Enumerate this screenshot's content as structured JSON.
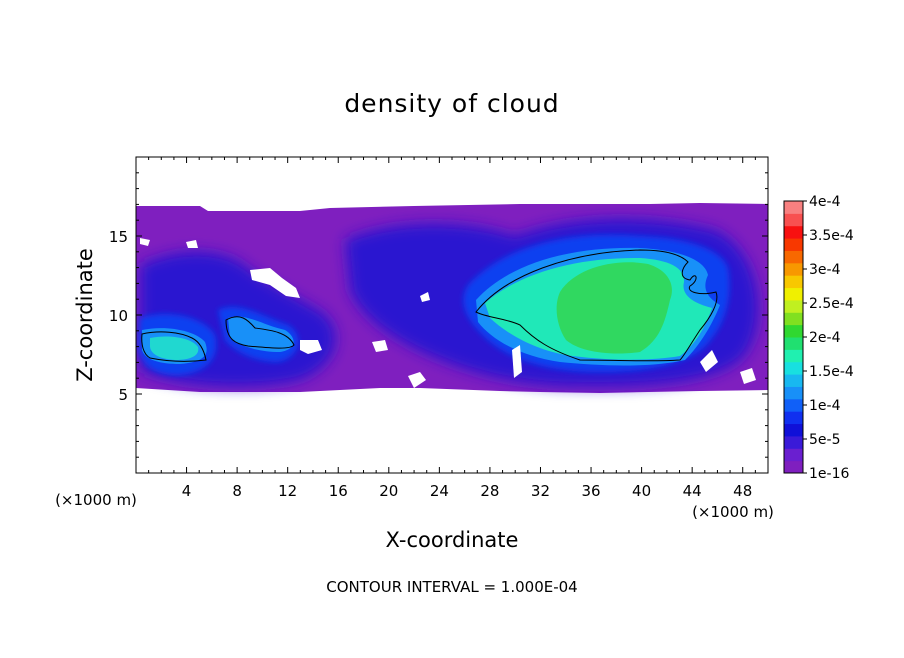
{
  "chart_data": {
    "type": "heatmap",
    "title": "density of cloud",
    "xlabel": "X-coordinate",
    "ylabel": "Z-coordinate",
    "x_unit_label": "(×1000 m)",
    "y_unit_label": "(×1000 m)",
    "xlim": [
      0,
      50
    ],
    "ylim": [
      0,
      20
    ],
    "x_ticks": [
      4,
      8,
      12,
      16,
      20,
      24,
      28,
      32,
      36,
      40,
      44,
      48
    ],
    "y_ticks": [
      5,
      10,
      15
    ],
    "colorbar": {
      "labels": [
        "1e-16",
        "5e-5",
        "1e-4",
        "1.5e-4",
        "2e-4",
        "2.5e-4",
        "3e-4",
        "3.5e-4",
        "4e-4"
      ],
      "label_values": [
        1e-16,
        5e-05,
        0.0001,
        0.00015,
        0.0002,
        0.00025,
        0.0003,
        0.00035,
        0.0004
      ],
      "min": 1e-16,
      "max": 0.0004,
      "colors": [
        "#7f1fbf",
        "#6a1fd0",
        "#3a1ad8",
        "#1010d8",
        "#1030f0",
        "#1060f8",
        "#1890f8",
        "#18b8f0",
        "#18e0e0",
        "#20f0b0",
        "#20e070",
        "#30d830",
        "#80e020",
        "#c0f020",
        "#f0f000",
        "#f8c800",
        "#f89800",
        "#f86800",
        "#f83800",
        "#f81010",
        "#f85050",
        "#f88080"
      ]
    },
    "cloud_layer_z": [
      5.3,
      16.8
    ],
    "contour_interval_text": "CONTOUR INTERVAL = 1.000E-04",
    "regions": [
      {
        "name": "large cell",
        "x_range": [
          26,
          46
        ],
        "z_range": [
          7,
          14.2
        ],
        "density": 0.00018
      },
      {
        "name": "left cell",
        "x_range": [
          0.5,
          5.5
        ],
        "z_range": [
          7,
          9
        ],
        "density": 0.00012
      },
      {
        "name": "middle cell",
        "x_range": [
          7,
          13
        ],
        "z_range": [
          7.8,
          10
        ],
        "density": 0.0001
      }
    ]
  }
}
